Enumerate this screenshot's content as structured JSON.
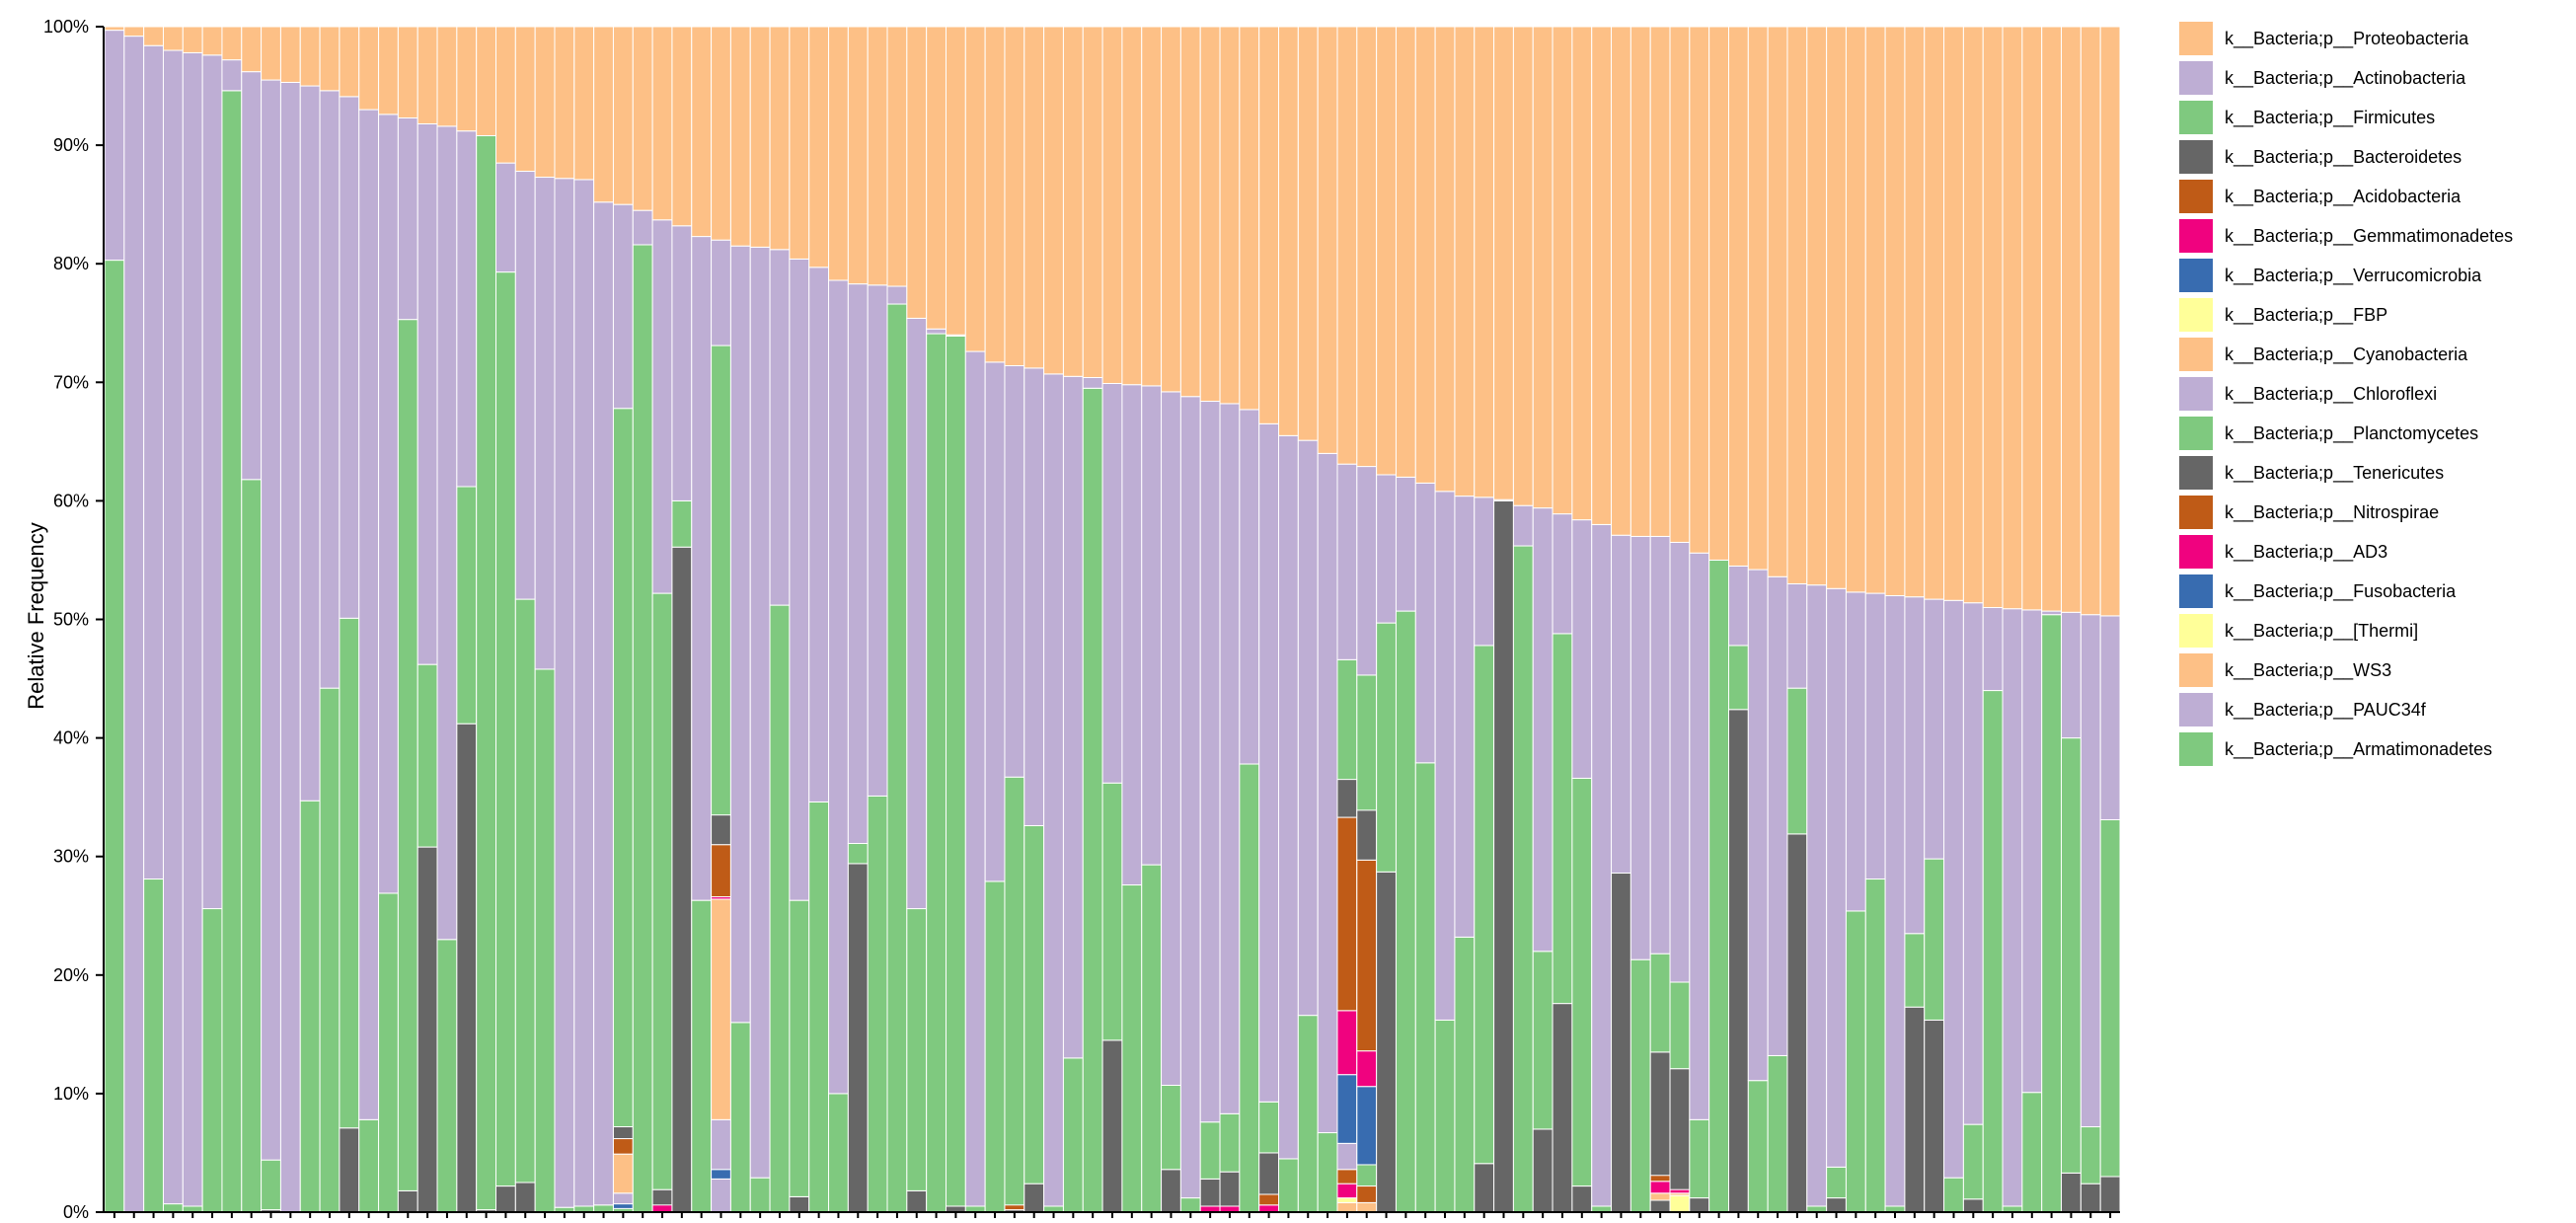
{
  "chart_data": {
    "type": "bar",
    "stacked": true,
    "normalized": true,
    "title": "",
    "xlabel": "",
    "ylabel": "Relative Frequency",
    "ylim": [
      0,
      100
    ],
    "y_tick_labels": [
      "0%",
      "10%",
      "20%",
      "30%",
      "40%",
      "50%",
      "60%",
      "70%",
      "80%",
      "90%",
      "100%"
    ],
    "legend_position": "right",
    "series": [
      {
        "name": "k__Bacteria;p__Proteobacteria",
        "color": "#fdc086"
      },
      {
        "name": "k__Bacteria;p__Actinobacteria",
        "color": "#beaed4"
      },
      {
        "name": "k__Bacteria;p__Firmicutes",
        "color": "#7fc97f"
      },
      {
        "name": "k__Bacteria;p__Bacteroidetes",
        "color": "#666666"
      },
      {
        "name": "k__Bacteria;p__Acidobacteria",
        "color": "#bf5b17"
      },
      {
        "name": "k__Bacteria;p__Gemmatimonadetes",
        "color": "#f0027f"
      },
      {
        "name": "k__Bacteria;p__Verrucomicrobia",
        "color": "#386cb0"
      },
      {
        "name": "k__Bacteria;p__FBP",
        "color": "#ffff99"
      },
      {
        "name": "k__Bacteria;p__Cyanobacteria",
        "color": "#fdc086"
      },
      {
        "name": "k__Bacteria;p__Chloroflexi",
        "color": "#beaed4"
      },
      {
        "name": "k__Bacteria;p__Planctomycetes",
        "color": "#7fc97f"
      },
      {
        "name": "k__Bacteria;p__Tenericutes",
        "color": "#666666"
      },
      {
        "name": "k__Bacteria;p__Nitrospirae",
        "color": "#bf5b17"
      },
      {
        "name": "k__Bacteria;p__AD3",
        "color": "#f0027f"
      },
      {
        "name": "k__Bacteria;p__Fusobacteria",
        "color": "#386cb0"
      },
      {
        "name": "k__Bacteria;p__[Thermi]",
        "color": "#ffff99"
      },
      {
        "name": "k__Bacteria;p__WS3",
        "color": "#fdc086"
      },
      {
        "name": "k__Bacteria;p__PAUC34f",
        "color": "#beaed4"
      },
      {
        "name": "k__Bacteria;p__Armatimonadetes",
        "color": "#7fc97f"
      }
    ],
    "bar_cumulative_tops_note": "Each sample (bar) lists cumulative upper bounds (percent) of the first five stacked layers from the bottom: Bacteroidetes, Firmicutes, Actinobacteria, Proteobacteria; remaining layers absorbed per sample in 'extra'.",
    "samples": [
      {
        "bact": 0,
        "firm": 80.3,
        "actino": 99.7
      },
      {
        "bact": 0,
        "firm": 0,
        "actino": 99.2
      },
      {
        "bact": 0,
        "firm": 28.1,
        "actino": 98.4
      },
      {
        "bact": 0,
        "firm": 0.7,
        "actino": 98.0
      },
      {
        "bact": 0,
        "firm": 0.5,
        "actino": 97.8
      },
      {
        "bact": 0,
        "firm": 25.6,
        "actino": 97.6
      },
      {
        "bact": 0,
        "firm": 94.6,
        "actino": 97.2
      },
      {
        "bact": 0,
        "firm": 61.8,
        "actino": 96.2
      },
      {
        "bact": 0.2,
        "firm": 4.4,
        "actino": 95.5
      },
      {
        "bact": 0,
        "firm": 0,
        "actino": 95.3
      },
      {
        "bact": 0,
        "firm": 34.7,
        "actino": 95.0
      },
      {
        "bact": 0,
        "firm": 44.2,
        "actino": 94.6
      },
      {
        "bact": 7.1,
        "firm": 50.1,
        "actino": 94.1
      },
      {
        "bact": 0,
        "firm": 7.8,
        "actino": 93.0
      },
      {
        "bact": 0,
        "firm": 26.9,
        "actino": 92.6
      },
      {
        "bact": 1.8,
        "firm": 75.3,
        "actino": 92.3
      },
      {
        "bact": 30.8,
        "firm": 46.2,
        "actino": 91.8
      },
      {
        "bact": 0,
        "firm": 23.0,
        "actino": 91.6
      },
      {
        "bact": 41.2,
        "firm": 61.2,
        "actino": 91.2
      },
      {
        "bact": 0.2,
        "firm": 90.8,
        "actino": 90.6
      },
      {
        "bact": 2.2,
        "firm": 79.3,
        "actino": 88.5
      },
      {
        "bact": 2.5,
        "firm": 51.7,
        "actino": 87.8
      },
      {
        "bact": 0,
        "firm": 45.8,
        "actino": 87.3
      },
      {
        "bact": 0,
        "firm": 0.4,
        "actino": 87.2
      },
      {
        "bact": 0,
        "firm": 0.5,
        "actino": 87.1
      },
      {
        "bact": 0,
        "firm": 0.6,
        "actino": 85.2
      },
      {
        "bact": 0,
        "firm": 67.8,
        "actino": 85.0,
        "extra": [
          {
            "c": "#386cb0",
            "from": 0.3,
            "to": 0.7
          },
          {
            "c": "#beaed4",
            "from": 0.7,
            "to": 1.6
          },
          {
            "c": "#fdc086",
            "from": 1.6,
            "to": 4.9
          },
          {
            "c": "#bf5b17",
            "from": 4.9,
            "to": 6.2
          },
          {
            "c": "#666666",
            "from": 6.2,
            "to": 7.2
          }
        ]
      },
      {
        "bact": 0,
        "firm": 81.6,
        "actino": 84.5
      },
      {
        "bact": 1.9,
        "firm": 52.2,
        "actino": 83.7,
        "extra": [
          {
            "c": "#f0027f",
            "from": 0,
            "to": 0.6
          }
        ]
      },
      {
        "bact": 56.1,
        "firm": 60.0,
        "actino": 83.2
      },
      {
        "bact": 0,
        "firm": 26.3,
        "actino": 82.3
      },
      {
        "bact": 0,
        "firm": 73.1,
        "actino": 82.0,
        "extra": [
          {
            "c": "#beaed4",
            "from": 0,
            "to": 2.8
          },
          {
            "c": "#386cb0",
            "from": 2.8,
            "to": 3.6
          },
          {
            "c": "#beaed4",
            "from": 3.6,
            "to": 7.8
          },
          {
            "c": "#fdc086",
            "from": 7.8,
            "to": 26.4
          },
          {
            "c": "#f0027f",
            "from": 26.4,
            "to": 26.6
          },
          {
            "c": "#bf5b17",
            "from": 26.6,
            "to": 31.0
          },
          {
            "c": "#666666",
            "from": 31.0,
            "to": 33.5
          }
        ]
      },
      {
        "bact": 0,
        "firm": 16.0,
        "actino": 81.5
      },
      {
        "bact": 0,
        "firm": 2.9,
        "actino": 81.4
      },
      {
        "bact": 0,
        "firm": 51.2,
        "actino": 81.2
      },
      {
        "bact": 1.3,
        "firm": 26.3,
        "actino": 80.4
      },
      {
        "bact": 0,
        "firm": 34.6,
        "actino": 79.7
      },
      {
        "bact": 0,
        "firm": 10.0,
        "actino": 78.6
      },
      {
        "bact": 29.4,
        "firm": 31.1,
        "actino": 78.3
      },
      {
        "bact": 0,
        "firm": 35.1,
        "actino": 78.2
      },
      {
        "bact": 0,
        "firm": 76.6,
        "actino": 78.1
      },
      {
        "bact": 1.8,
        "firm": 25.6,
        "actino": 75.4
      },
      {
        "bact": 0,
        "firm": 74.1,
        "actino": 74.5
      },
      {
        "bact": 0.5,
        "firm": 73.9,
        "actino": 74.0
      },
      {
        "bact": 0,
        "firm": 0.5,
        "actino": 72.6
      },
      {
        "bact": 0,
        "firm": 27.9,
        "actino": 71.7
      },
      {
        "bact": 0.2,
        "firm": 36.7,
        "actino": 71.4,
        "extra": [
          {
            "c": "#bf5b17",
            "from": 0.2,
            "to": 0.6
          }
        ]
      },
      {
        "bact": 2.4,
        "firm": 32.6,
        "actino": 71.2
      },
      {
        "bact": 0,
        "firm": 0.5,
        "actino": 70.7
      },
      {
        "bact": 0,
        "firm": 13.0,
        "actino": 70.5
      },
      {
        "bact": 0,
        "firm": 69.5,
        "actino": 70.4
      },
      {
        "bact": 14.5,
        "firm": 36.2,
        "actino": 69.9
      },
      {
        "bact": 0,
        "firm": 27.6,
        "actino": 69.8
      },
      {
        "bact": 0,
        "firm": 29.3,
        "actino": 69.7
      },
      {
        "bact": 3.6,
        "firm": 10.7,
        "actino": 69.2
      },
      {
        "bact": 0,
        "firm": 1.2,
        "actino": 68.8
      },
      {
        "bact": 2.8,
        "firm": 7.6,
        "actino": 68.4,
        "extra": [
          {
            "c": "#f0027f",
            "from": 0,
            "to": 0.5
          }
        ]
      },
      {
        "bact": 3.4,
        "firm": 8.3,
        "actino": 68.2,
        "extra": [
          {
            "c": "#f0027f",
            "from": 0,
            "to": 0.5
          }
        ]
      },
      {
        "bact": 0,
        "firm": 37.8,
        "actino": 67.7
      },
      {
        "bact": 5.0,
        "firm": 9.3,
        "actino": 66.5,
        "extra": [
          {
            "c": "#f0027f",
            "from": 0,
            "to": 0.6
          },
          {
            "c": "#bf5b17",
            "from": 0.6,
            "to": 1.5
          }
        ]
      },
      {
        "bact": 0,
        "firm": 4.5,
        "actino": 65.5
      },
      {
        "bact": 0,
        "firm": 16.6,
        "actino": 65.1
      },
      {
        "bact": 0,
        "firm": 6.7,
        "actino": 64.0
      },
      {
        "bact": 0,
        "firm": 46.6,
        "actino": 63.1,
        "extra": [
          {
            "c": "#fdc086",
            "from": 0,
            "to": 0.8
          },
          {
            "c": "#ffff99",
            "from": 0.8,
            "to": 1.2
          },
          {
            "c": "#f0027f",
            "from": 1.2,
            "to": 2.4
          },
          {
            "c": "#bf5b17",
            "from": 2.4,
            "to": 3.6
          },
          {
            "c": "#beaed4",
            "from": 3.6,
            "to": 5.8
          },
          {
            "c": "#386cb0",
            "from": 5.8,
            "to": 11.6
          },
          {
            "c": "#f0027f",
            "from": 11.6,
            "to": 17.0
          },
          {
            "c": "#bf5b17",
            "from": 17.0,
            "to": 33.3
          },
          {
            "c": "#666666",
            "from": 33.3,
            "to": 36.5
          }
        ]
      },
      {
        "bact": 0,
        "firm": 45.3,
        "actino": 62.9,
        "extra": [
          {
            "c": "#fdc086",
            "from": 0,
            "to": 0.8
          },
          {
            "c": "#bf5b17",
            "from": 0.8,
            "to": 2.2
          },
          {
            "c": "#386cb0",
            "from": 4.0,
            "to": 10.6
          },
          {
            "c": "#f0027f",
            "from": 10.6,
            "to": 13.6
          },
          {
            "c": "#bf5b17",
            "from": 13.6,
            "to": 29.7
          },
          {
            "c": "#666666",
            "from": 29.7,
            "to": 33.9
          }
        ]
      },
      {
        "bact": 28.7,
        "firm": 49.7,
        "actino": 62.2
      },
      {
        "bact": 0,
        "firm": 50.7,
        "actino": 62.0
      },
      {
        "bact": 0,
        "firm": 37.9,
        "actino": 61.5
      },
      {
        "bact": 0,
        "firm": 16.2,
        "actino": 60.8
      },
      {
        "bact": 0,
        "firm": 23.2,
        "actino": 60.4
      },
      {
        "bact": 4.1,
        "firm": 47.8,
        "actino": 60.3
      },
      {
        "bact": 60.0,
        "firm": 60.0,
        "actino": 60.1
      },
      {
        "bact": 0,
        "firm": 56.2,
        "actino": 59.6
      },
      {
        "bact": 7.0,
        "firm": 22.0,
        "actino": 59.4
      },
      {
        "bact": 17.6,
        "firm": 48.8,
        "actino": 58.9
      },
      {
        "bact": 2.2,
        "firm": 36.6,
        "actino": 58.4
      },
      {
        "bact": 0,
        "firm": 0.5,
        "actino": 58.0
      },
      {
        "bact": 28.6,
        "firm": 28.6,
        "actino": 57.1
      },
      {
        "bact": 0,
        "firm": 21.3,
        "actino": 57.0
      },
      {
        "bact": 13.5,
        "firm": 21.8,
        "actino": 57.0,
        "extra": [
          {
            "c": "#666666",
            "from": 0,
            "to": 1.0
          },
          {
            "c": "#fdc086",
            "from": 1.0,
            "to": 1.6
          },
          {
            "c": "#f0027f",
            "from": 1.6,
            "to": 2.6
          },
          {
            "c": "#bf5b17",
            "from": 2.6,
            "to": 3.1
          }
        ]
      },
      {
        "bact": 12.1,
        "firm": 19.4,
        "actino": 56.5,
        "extra": [
          {
            "c": "#ffff99",
            "from": 0,
            "to": 1.4
          },
          {
            "c": "#fdc086",
            "from": 1.4,
            "to": 1.6
          },
          {
            "c": "#f0027f",
            "from": 1.6,
            "to": 1.9
          }
        ]
      },
      {
        "bact": 1.2,
        "firm": 7.8,
        "actino": 55.6
      },
      {
        "bact": 0,
        "firm": 55.0,
        "actino": 54.9
      },
      {
        "bact": 42.4,
        "firm": 47.8,
        "actino": 54.5
      },
      {
        "bact": 0,
        "firm": 11.1,
        "actino": 54.2
      },
      {
        "bact": 0,
        "firm": 13.2,
        "actino": 53.6
      },
      {
        "bact": 31.9,
        "firm": 44.2,
        "actino": 53.0
      },
      {
        "bact": 0,
        "firm": 0.5,
        "actino": 52.9
      },
      {
        "bact": 1.2,
        "firm": 3.8,
        "actino": 52.6
      },
      {
        "bact": 0,
        "firm": 25.4,
        "actino": 52.3
      },
      {
        "bact": 0,
        "firm": 28.1,
        "actino": 52.2
      },
      {
        "bact": 0,
        "firm": 0.5,
        "actino": 52.0
      },
      {
        "bact": 17.3,
        "firm": 23.5,
        "actino": 51.9
      },
      {
        "bact": 16.2,
        "firm": 29.8,
        "actino": 51.7
      },
      {
        "bact": 0,
        "firm": 2.9,
        "actino": 51.6
      },
      {
        "bact": 1.1,
        "firm": 7.4,
        "actino": 51.4
      },
      {
        "bact": 0,
        "firm": 44.0,
        "actino": 51.0
      },
      {
        "bact": 0,
        "firm": 0.5,
        "actino": 50.9
      },
      {
        "bact": 0,
        "firm": 10.1,
        "actino": 50.8
      },
      {
        "bact": 0,
        "firm": 50.4,
        "actino": 50.7
      },
      {
        "bact": 3.3,
        "firm": 40.0,
        "actino": 50.6
      },
      {
        "bact": 2.4,
        "firm": 7.2,
        "actino": 50.4
      },
      {
        "bact": 3.0,
        "firm": 33.1,
        "actino": 50.3
      }
    ]
  }
}
